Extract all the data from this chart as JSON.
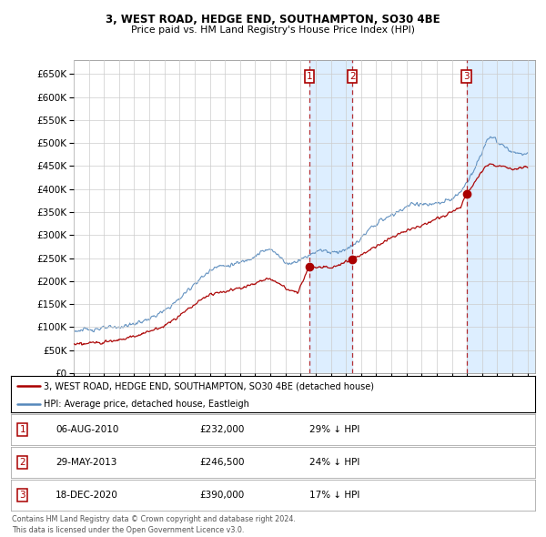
{
  "title1": "3, WEST ROAD, HEDGE END, SOUTHAMPTON, SO30 4BE",
  "title2": "Price paid vs. HM Land Registry's House Price Index (HPI)",
  "ylim": [
    0,
    680000
  ],
  "yticks": [
    0,
    50000,
    100000,
    150000,
    200000,
    250000,
    300000,
    350000,
    400000,
    450000,
    500000,
    550000,
    600000,
    650000
  ],
  "xlim_start": 1995.0,
  "xlim_end": 2025.5,
  "sale_dates": [
    2010.583,
    2013.413,
    2020.962
  ],
  "sale_prices": [
    232000,
    246500,
    390000
  ],
  "sale_labels": [
    "1",
    "2",
    "3"
  ],
  "legend_line1": "3, WEST ROAD, HEDGE END, SOUTHAMPTON, SO30 4BE (detached house)",
  "legend_line2": "HPI: Average price, detached house, Eastleigh",
  "table_data": [
    [
      "1",
      "06-AUG-2010",
      "£232,000",
      "29% ↓ HPI"
    ],
    [
      "2",
      "29-MAY-2013",
      "£246,500",
      "24% ↓ HPI"
    ],
    [
      "3",
      "18-DEC-2020",
      "£390,000",
      "17% ↓ HPI"
    ]
  ],
  "footer": "Contains HM Land Registry data © Crown copyright and database right 2024.\nThis data is licensed under the Open Government Licence v3.0.",
  "red_color": "#aa0000",
  "blue_color": "#5588bb",
  "shade_color": "#ddeeff",
  "grid_color": "#cccccc",
  "background_color": "#ffffff"
}
